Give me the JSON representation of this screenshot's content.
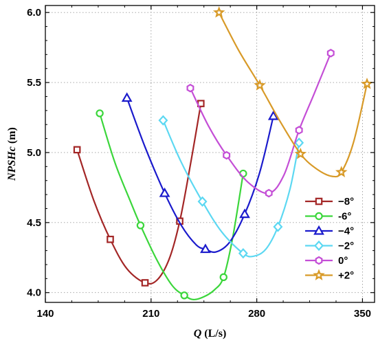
{
  "chart_data": {
    "type": "line",
    "xlabel": "Q (L/s)",
    "xlabel_italic": "Q",
    "xlabel_unit": " (L/s)",
    "ylabel": "NPSHc (m)",
    "ylabel_italic": "NPSHc",
    "ylabel_unit": " (m)",
    "xlim": [
      140,
      358
    ],
    "ylim": [
      3.93,
      6.05
    ],
    "xticks": [
      140,
      210,
      280,
      350
    ],
    "xtick_labels": [
      "140",
      "210",
      "280",
      "350"
    ],
    "yticks": [
      4.0,
      4.5,
      5.0,
      5.5,
      6.0
    ],
    "ytick_labels": [
      "4.0",
      "4.5",
      "5.0",
      "5.5",
      "6.0"
    ],
    "grid": true,
    "legend_position": "right",
    "series": [
      {
        "name": "−8°",
        "color": "#a32626",
        "marker": "square",
        "points": [
          [
            161,
            5.02
          ],
          [
            183,
            4.38
          ],
          [
            206,
            4.07
          ],
          [
            229,
            4.51
          ],
          [
            243,
            5.35
          ]
        ],
        "curve": [
          [
            161,
            5.02
          ],
          [
            172,
            4.66
          ],
          [
            183,
            4.38
          ],
          [
            194,
            4.17
          ],
          [
            206,
            4.07
          ],
          [
            214,
            4.09
          ],
          [
            222,
            4.24
          ],
          [
            229,
            4.51
          ],
          [
            236,
            4.91
          ],
          [
            243,
            5.35
          ]
        ]
      },
      {
        "name": "-6°",
        "color": "#3bd63b",
        "marker": "circle",
        "points": [
          [
            176,
            5.28
          ],
          [
            203,
            4.48
          ],
          [
            232,
            3.98
          ],
          [
            258,
            4.11
          ],
          [
            271,
            4.85
          ]
        ],
        "curve": [
          [
            176,
            5.28
          ],
          [
            186,
            4.93
          ],
          [
            196,
            4.66
          ],
          [
            203,
            4.48
          ],
          [
            214,
            4.23
          ],
          [
            224,
            4.05
          ],
          [
            232,
            3.98
          ],
          [
            238,
            3.95
          ],
          [
            245,
            3.97
          ],
          [
            252,
            4.02
          ],
          [
            258,
            4.11
          ],
          [
            264,
            4.39
          ],
          [
            271,
            4.85
          ]
        ]
      },
      {
        "name": "−4°",
        "color": "#1a1acc",
        "marker": "triangle",
        "points": [
          [
            194,
            5.39
          ],
          [
            219,
            4.71
          ],
          [
            246,
            4.31
          ],
          [
            272,
            4.56
          ],
          [
            291,
            5.26
          ]
        ],
        "curve": [
          [
            194,
            5.39
          ],
          [
            206,
            5.04
          ],
          [
            219,
            4.71
          ],
          [
            230,
            4.48
          ],
          [
            240,
            4.34
          ],
          [
            246,
            4.31
          ],
          [
            253,
            4.29
          ],
          [
            262,
            4.36
          ],
          [
            272,
            4.56
          ],
          [
            282,
            4.86
          ],
          [
            291,
            5.26
          ]
        ]
      },
      {
        "name": "−2°",
        "color": "#5cd8f2",
        "marker": "diamond",
        "points": [
          [
            218,
            5.23
          ],
          [
            244,
            4.65
          ],
          [
            271,
            4.28
          ],
          [
            294,
            4.47
          ],
          [
            308,
            5.07
          ]
        ],
        "curve": [
          [
            218,
            5.23
          ],
          [
            230,
            4.93
          ],
          [
            244,
            4.65
          ],
          [
            257,
            4.43
          ],
          [
            271,
            4.28
          ],
          [
            278,
            4.26
          ],
          [
            286,
            4.31
          ],
          [
            294,
            4.47
          ],
          [
            302,
            4.74
          ],
          [
            308,
            5.07
          ]
        ]
      },
      {
        "name": "0°",
        "color": "#c44ed6",
        "marker": "hexagon",
        "points": [
          [
            236,
            5.46
          ],
          [
            260,
            4.98
          ],
          [
            288,
            4.71
          ],
          [
            308,
            5.16
          ],
          [
            329,
            5.71
          ]
        ],
        "curve": [
          [
            236,
            5.46
          ],
          [
            248,
            5.19
          ],
          [
            260,
            4.98
          ],
          [
            274,
            4.79
          ],
          [
            288,
            4.71
          ],
          [
            298,
            4.84
          ],
          [
            308,
            5.16
          ],
          [
            318,
            5.42
          ],
          [
            329,
            5.71
          ]
        ]
      },
      {
        "name": "+2°",
        "color": "#d89a28",
        "marker": "star",
        "points": [
          [
            255,
            6.0
          ],
          [
            282,
            5.48
          ],
          [
            309,
            4.99
          ],
          [
            336,
            4.86
          ],
          [
            353,
            5.49
          ]
        ],
        "curve": [
          [
            255,
            6.0
          ],
          [
            268,
            5.73
          ],
          [
            282,
            5.48
          ],
          [
            295,
            5.23
          ],
          [
            309,
            4.99
          ],
          [
            320,
            4.88
          ],
          [
            330,
            4.83
          ],
          [
            336,
            4.86
          ],
          [
            344,
            5.07
          ],
          [
            353,
            5.49
          ]
        ]
      }
    ]
  }
}
